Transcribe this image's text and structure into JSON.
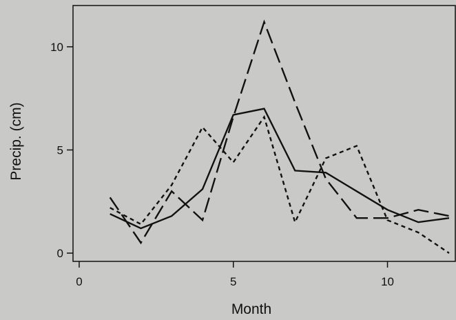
{
  "chart_data": {
    "type": "line",
    "title": "",
    "xlabel": "Month",
    "ylabel": "Precip. (cm)",
    "xlim": [
      -0.2,
      12.2
    ],
    "ylim": [
      -0.4,
      12.0
    ],
    "x_ticks": [
      0,
      5,
      10
    ],
    "y_ticks": [
      0,
      5,
      10
    ],
    "grid": false,
    "legend": "none",
    "x": [
      1,
      2,
      3,
      4,
      5,
      6,
      7,
      8,
      9,
      10,
      11,
      12
    ],
    "series": [
      {
        "style": "solid",
        "color": "#111111",
        "values": [
          1.9,
          1.2,
          1.8,
          3.1,
          6.7,
          7.0,
          4.0,
          3.9,
          3.0,
          2.1,
          1.5,
          1.7
        ]
      },
      {
        "style": "dashed",
        "color": "#111111",
        "values": [
          2.7,
          0.5,
          3.0,
          1.6,
          6.6,
          11.2,
          7.3,
          3.6,
          1.7,
          1.7,
          2.1,
          1.8
        ]
      },
      {
        "style": "dotted",
        "color": "#111111",
        "values": [
          2.2,
          1.4,
          3.3,
          6.1,
          4.4,
          6.6,
          1.5,
          4.6,
          5.2,
          1.6,
          1.0,
          0.0
        ]
      }
    ]
  }
}
